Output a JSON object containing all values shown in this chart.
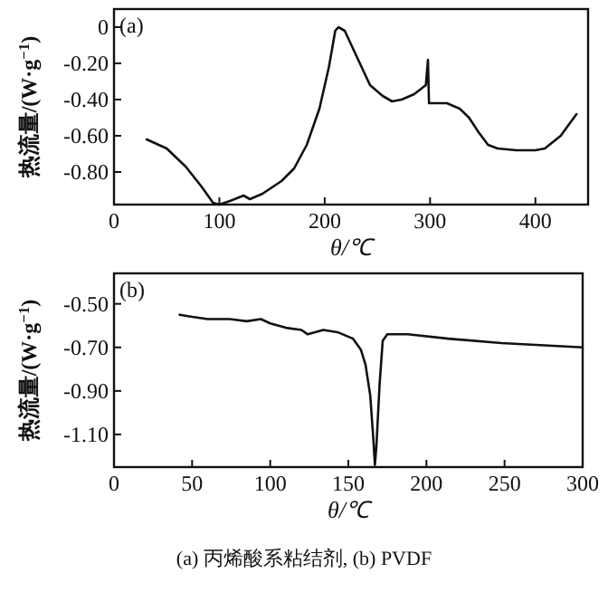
{
  "chart_data": [
    {
      "type": "line",
      "title": "(a)",
      "xlabel": "θ/℃",
      "ylabel": "热流量/(W·g$^{−1}$)",
      "xlim": [
        0,
        450
      ],
      "xticks": [
        0,
        100,
        200,
        300,
        400
      ],
      "ylim": [
        -0.98,
        0.1
      ],
      "yticks": [
        {
          "value": 0,
          "label": "0"
        },
        {
          "value": -0.2,
          "label": "-0.20"
        },
        {
          "value": -0.4,
          "label": "-0.40"
        },
        {
          "value": -0.6,
          "label": "-0.60"
        },
        {
          "value": -0.8,
          "label": "-0.80"
        }
      ],
      "series": [
        {
          "color": "#111111",
          "x": [
            31,
            50,
            68,
            83,
            94,
            100,
            110,
            123,
            129,
            141,
            159,
            171,
            183,
            195,
            204,
            210,
            213,
            219,
            231,
            243,
            255,
            264,
            273,
            285,
            296,
            298,
            299,
            316,
            328,
            337,
            346,
            355,
            364,
            382,
            400,
            409,
            424,
            439
          ],
          "values": [
            -0.62,
            -0.67,
            -0.77,
            -0.88,
            -0.97,
            -0.98,
            -0.96,
            -0.93,
            -0.95,
            -0.92,
            -0.85,
            -0.78,
            -0.65,
            -0.45,
            -0.22,
            -0.02,
            0,
            -0.02,
            -0.17,
            -0.32,
            -0.38,
            -0.41,
            -0.4,
            -0.37,
            -0.32,
            -0.18,
            -0.42,
            -0.42,
            -0.45,
            -0.5,
            -0.58,
            -0.65,
            -0.67,
            -0.68,
            -0.68,
            -0.67,
            -0.6,
            -0.48
          ]
        }
      ]
    },
    {
      "type": "line",
      "title": "(b)",
      "xlabel": "θ/℃",
      "ylabel": "热流量/(W·g$^{−1}$)",
      "xlim": [
        0,
        300
      ],
      "xticks": [
        0,
        50,
        100,
        150,
        200,
        250,
        300
      ],
      "ylim": [
        -1.25,
        -0.36
      ],
      "yticks": [
        {
          "value": -0.5,
          "label": "-0.50"
        },
        {
          "value": -0.7,
          "label": "-0.70"
        },
        {
          "value": -0.9,
          "label": "-0.90"
        },
        {
          "value": -1.1,
          "label": "-1.10"
        }
      ],
      "annotations": [
        "(a) 丙烯酸系粘结剂, (b) PVDF"
      ],
      "series": [
        {
          "color": "#111111",
          "x": [
            42,
            50,
            60,
            74,
            85,
            94,
            100,
            110,
            120,
            124,
            134,
            143,
            153,
            158,
            161,
            164,
            166,
            167,
            168,
            170,
            172,
            175,
            181,
            188,
            214,
            248,
            300
          ],
          "values": [
            -0.55,
            -0.56,
            -0.57,
            -0.57,
            -0.58,
            -0.57,
            -0.59,
            -0.61,
            -0.62,
            -0.64,
            -0.62,
            -0.63,
            -0.66,
            -0.71,
            -0.78,
            -0.92,
            -1.12,
            -1.24,
            -1.15,
            -0.87,
            -0.67,
            -0.64,
            -0.64,
            -0.64,
            -0.66,
            -0.68,
            -0.7
          ]
        }
      ]
    }
  ]
}
